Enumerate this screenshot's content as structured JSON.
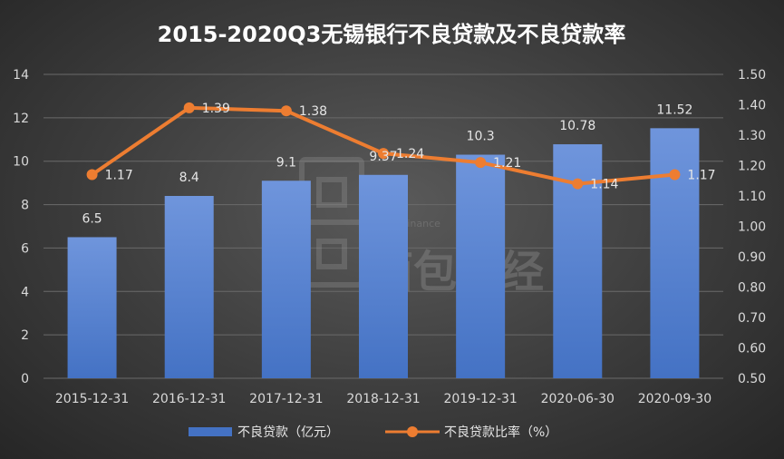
{
  "chart_data": {
    "type": "bar",
    "title": "2015-2020Q3无锡银行不良贷款及不良贷款率",
    "categories": [
      "2015-12-31",
      "2016-12-31",
      "2017-12-31",
      "2018-12-31",
      "2019-12-31",
      "2020-06-30",
      "2020-09-30"
    ],
    "series": [
      {
        "name": "不良贷款（亿元）",
        "type": "bar",
        "axis": "left",
        "color": "#4472c4",
        "values": [
          6.5,
          8.4,
          9.1,
          9.37,
          10.3,
          10.78,
          11.52
        ],
        "labels": [
          "6.5",
          "8.4",
          "9.1",
          "9.37",
          "10.3",
          "10.78",
          "11.52"
        ]
      },
      {
        "name": "不良贷款比率（%）",
        "type": "line",
        "axis": "right",
        "color": "#ed7d31",
        "values": [
          1.17,
          1.39,
          1.38,
          1.24,
          1.21,
          1.14,
          1.17
        ],
        "labels": [
          "1.17",
          "1.39",
          "1.38",
          "1.24",
          "1.21",
          "1.14",
          "1.17"
        ]
      }
    ],
    "y_left": {
      "min": 0,
      "max": 14,
      "step": 2,
      "tick_labels": [
        "0",
        "2",
        "4",
        "6",
        "8",
        "10",
        "12",
        "14"
      ]
    },
    "y_right": {
      "min": 0.5,
      "max": 1.5,
      "step": 0.1,
      "tick_labels": [
        "0.50",
        "0.60",
        "0.70",
        "0.80",
        "0.90",
        "1.00",
        "1.10",
        "1.20",
        "1.30",
        "1.40",
        "1.50"
      ]
    },
    "grid": true,
    "legend": "bottom"
  },
  "watermark": {
    "text": "Bread Finance",
    "chars": "面包财经"
  }
}
